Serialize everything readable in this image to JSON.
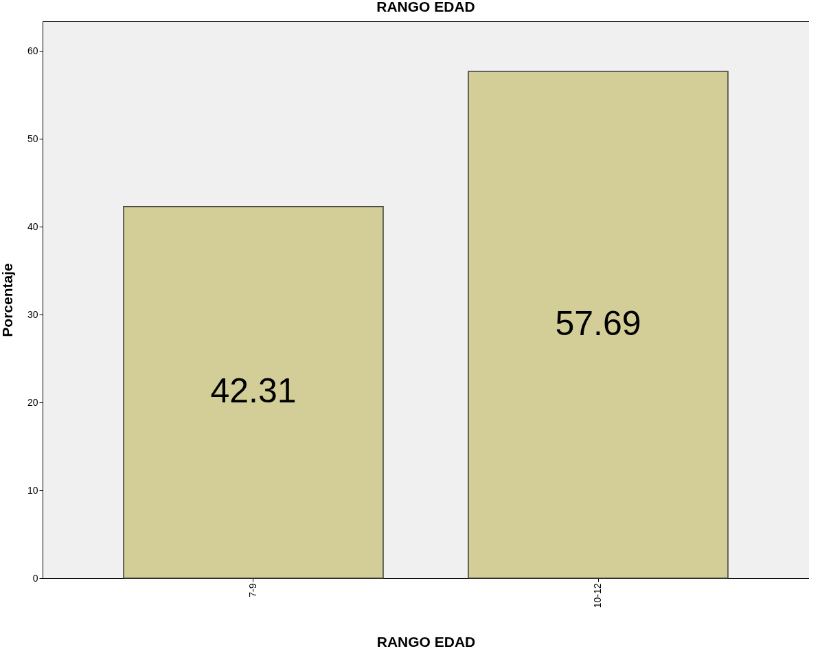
{
  "chart_data": {
    "type": "bar",
    "title": "RANGO EDAD",
    "xlabel": "RANGO EDAD",
    "ylabel": "Porcentaje",
    "categories": [
      "7-9",
      "10-12"
    ],
    "values": [
      42.31,
      57.69
    ],
    "color": "#d3ce97",
    "ylim": [
      0,
      63.4
    ],
    "yticks": [
      0,
      10,
      20,
      30,
      40,
      50,
      60
    ],
    "grid": false,
    "data_labels": true
  }
}
